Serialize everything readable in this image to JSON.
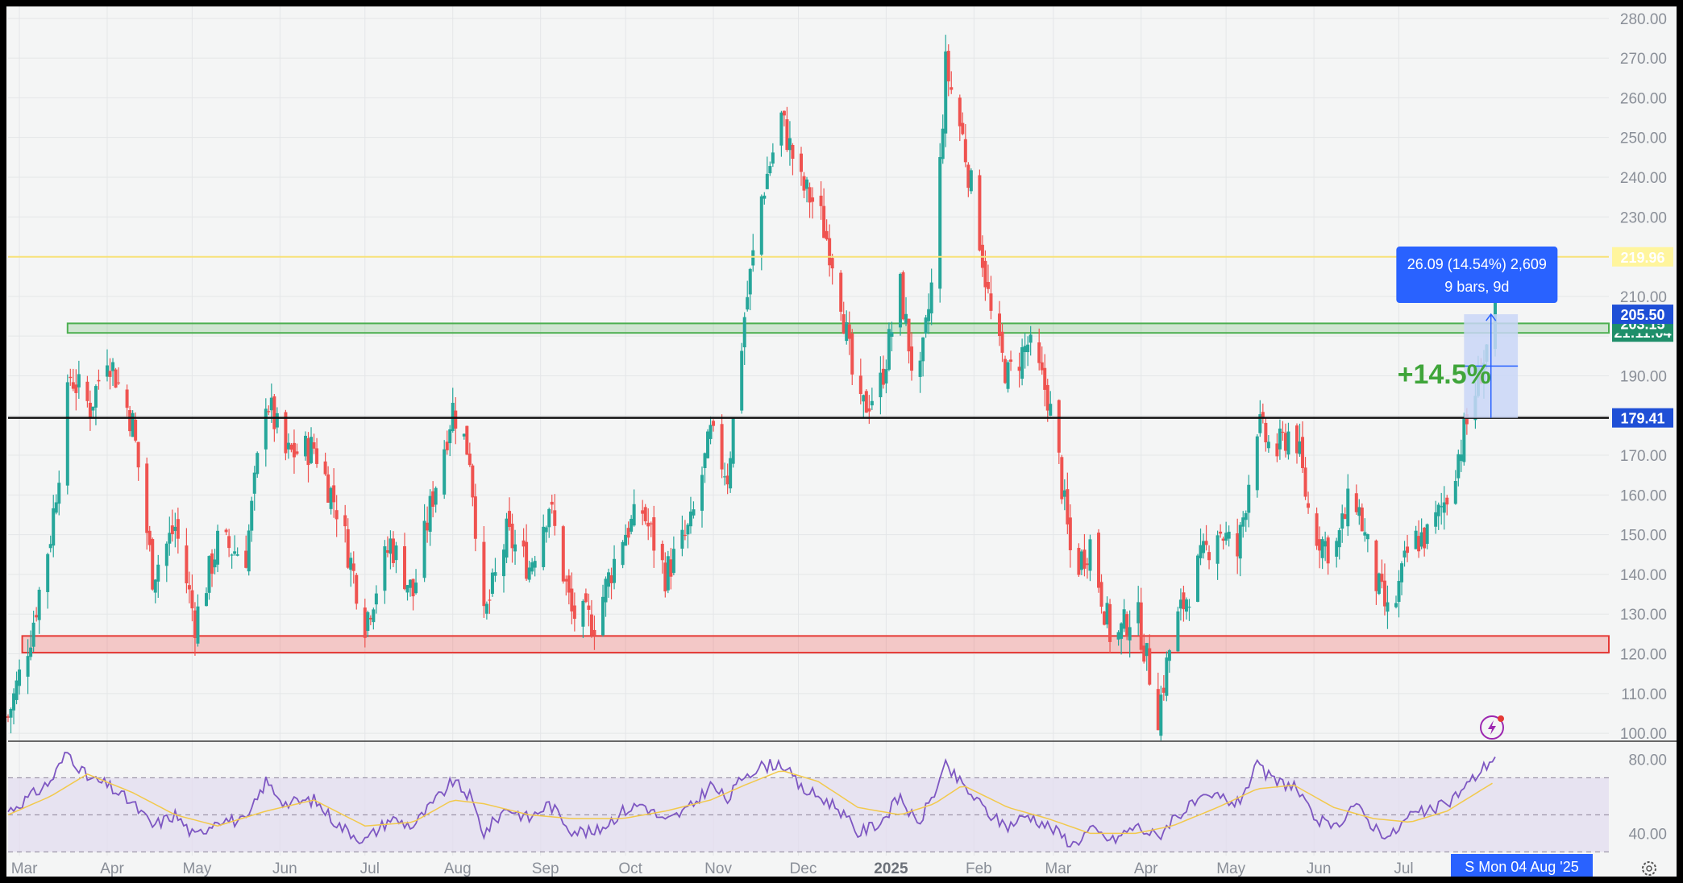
{
  "chart_data": [
    {
      "type": "candlestick",
      "title": "",
      "x_axis": {
        "type": "date",
        "range": [
          "2024-02-26",
          "2025-08-04"
        ],
        "month_labels": [
          {
            "label": "Mar",
            "date": "2024-03-01"
          },
          {
            "label": "Apr",
            "date": "2024-04-01"
          },
          {
            "label": "May",
            "date": "2024-05-01"
          },
          {
            "label": "Jun",
            "date": "2024-06-01"
          },
          {
            "label": "Jul",
            "date": "2024-07-01"
          },
          {
            "label": "Aug",
            "date": "2024-08-01"
          },
          {
            "label": "Sep",
            "date": "2024-09-01"
          },
          {
            "label": "Oct",
            "date": "2024-10-01"
          },
          {
            "label": "Nov",
            "date": "2024-11-01"
          },
          {
            "label": "Dec",
            "date": "2024-12-01"
          },
          {
            "label": "2025",
            "date": "2025-01-01",
            "bold": true
          },
          {
            "label": "Feb",
            "date": "2025-02-01"
          },
          {
            "label": "Mar",
            "date": "2025-03-01"
          },
          {
            "label": "Apr",
            "date": "2025-04-01"
          },
          {
            "label": "May",
            "date": "2025-05-01"
          },
          {
            "label": "Jun",
            "date": "2025-06-01"
          },
          {
            "label": "Jul",
            "date": "2025-07-01"
          }
        ]
      },
      "y_axis": {
        "range": [
          98,
          283
        ],
        "ticks": [
          "280.00",
          "270.00",
          "260.00",
          "250.00",
          "240.00",
          "230.00",
          "220.00",
          "210.00",
          "200.00",
          "190.00",
          "180.00",
          "170.00",
          "160.00",
          "150.00",
          "140.00",
          "130.00",
          "120.00",
          "110.00",
          "100.00"
        ]
      },
      "grid": true,
      "colors": {
        "up": "#26a69a",
        "down": "#ef5350",
        "background": "#f4f5f5",
        "grid": "#e4e6e8"
      },
      "price_path": [
        {
          "date": "2024-02-26",
          "close": 104
        },
        {
          "date": "2024-03-05",
          "close": 125
        },
        {
          "date": "2024-03-12",
          "close": 150
        },
        {
          "date": "2024-03-19",
          "close": 190
        },
        {
          "date": "2024-03-26",
          "close": 182
        },
        {
          "date": "2024-04-01",
          "close": 196
        },
        {
          "date": "2024-04-10",
          "close": 178
        },
        {
          "date": "2024-04-17",
          "close": 140
        },
        {
          "date": "2024-04-25",
          "close": 152
        },
        {
          "date": "2024-05-02",
          "close": 128
        },
        {
          "date": "2024-05-10",
          "close": 148
        },
        {
          "date": "2024-05-20",
          "close": 145
        },
        {
          "date": "2024-05-27",
          "close": 185
        },
        {
          "date": "2024-06-03",
          "close": 170
        },
        {
          "date": "2024-06-13",
          "close": 172
        },
        {
          "date": "2024-06-22",
          "close": 155
        },
        {
          "date": "2024-07-01",
          "close": 128
        },
        {
          "date": "2024-07-10",
          "close": 148
        },
        {
          "date": "2024-07-18",
          "close": 135
        },
        {
          "date": "2024-07-25",
          "close": 160
        },
        {
          "date": "2024-08-01",
          "close": 182
        },
        {
          "date": "2024-08-07",
          "close": 170
        },
        {
          "date": "2024-08-12",
          "close": 128
        },
        {
          "date": "2024-08-20",
          "close": 150
        },
        {
          "date": "2024-08-28",
          "close": 142
        },
        {
          "date": "2024-09-04",
          "close": 158
        },
        {
          "date": "2024-09-12",
          "close": 130
        },
        {
          "date": "2024-09-20",
          "close": 128
        },
        {
          "date": "2024-09-30",
          "close": 150
        },
        {
          "date": "2024-10-07",
          "close": 156
        },
        {
          "date": "2024-10-15",
          "close": 140
        },
        {
          "date": "2024-10-24",
          "close": 152
        },
        {
          "date": "2024-10-31",
          "close": 175
        },
        {
          "date": "2024-11-06",
          "close": 165
        },
        {
          "date": "2024-11-12",
          "close": 205
        },
        {
          "date": "2024-11-18",
          "close": 235
        },
        {
          "date": "2024-11-25",
          "close": 255
        },
        {
          "date": "2024-12-02",
          "close": 238
        },
        {
          "date": "2024-12-08",
          "close": 232
        },
        {
          "date": "2024-12-15",
          "close": 215
        },
        {
          "date": "2024-12-22",
          "close": 180
        },
        {
          "date": "2024-12-30",
          "close": 188
        },
        {
          "date": "2025-01-06",
          "close": 212
        },
        {
          "date": "2025-01-12",
          "close": 184
        },
        {
          "date": "2025-01-18",
          "close": 218
        },
        {
          "date": "2025-01-22",
          "close": 268
        },
        {
          "date": "2025-01-28",
          "close": 250
        },
        {
          "date": "2025-02-03",
          "close": 225
        },
        {
          "date": "2025-02-08",
          "close": 200
        },
        {
          "date": "2025-02-13",
          "close": 190
        },
        {
          "date": "2025-02-20",
          "close": 198
        },
        {
          "date": "2025-02-27",
          "close": 185
        },
        {
          "date": "2025-03-03",
          "close": 168
        },
        {
          "date": "2025-03-08",
          "close": 140
        },
        {
          "date": "2025-03-14",
          "close": 148
        },
        {
          "date": "2025-03-22",
          "close": 122
        },
        {
          "date": "2025-03-30",
          "close": 132
        },
        {
          "date": "2025-04-07",
          "close": 105
        },
        {
          "date": "2025-04-12",
          "close": 125
        },
        {
          "date": "2025-04-20",
          "close": 140
        },
        {
          "date": "2025-04-28",
          "close": 152
        },
        {
          "date": "2025-05-05",
          "close": 145
        },
        {
          "date": "2025-05-12",
          "close": 178
        },
        {
          "date": "2025-05-18",
          "close": 170
        },
        {
          "date": "2025-05-25",
          "close": 178
        },
        {
          "date": "2025-05-31",
          "close": 152
        },
        {
          "date": "2025-06-08",
          "close": 145
        },
        {
          "date": "2025-06-15",
          "close": 162
        },
        {
          "date": "2025-06-22",
          "close": 140
        },
        {
          "date": "2025-06-28",
          "close": 128
        },
        {
          "date": "2025-07-05",
          "close": 148
        },
        {
          "date": "2025-07-12",
          "close": 150
        },
        {
          "date": "2025-07-18",
          "close": 160
        },
        {
          "date": "2025-07-25",
          "close": 178
        },
        {
          "date": "2025-08-04",
          "close": 205.5
        }
      ],
      "horizontal_lines": [
        {
          "price": 219.96,
          "color": "#f7e27a",
          "label": "219.96",
          "tag_bg": "#fff59d",
          "tag_fg": "#222222"
        },
        {
          "price": 179.41,
          "color": "#111111",
          "label": "179.41",
          "tag_bg": "#1f4fd6",
          "tag_fg": "#ffffff"
        }
      ],
      "zones": [
        {
          "type": "resistance",
          "from": 200.8,
          "to": 203.2,
          "start": "2024-03-18",
          "color": "#4caf50"
        },
        {
          "type": "support",
          "from": 120.3,
          "to": 124.5,
          "start": "2024-03-02",
          "color": "#e53935"
        }
      ],
      "price_tags": [
        {
          "label": "205.50",
          "price": 205.5,
          "bg": "#1f4fd6"
        },
        {
          "label": "203.15",
          "price": 203.15,
          "bg": "#1f8f6a"
        },
        {
          "label": "21:11:04",
          "price": 201.0,
          "bg": "#1f8f6a"
        }
      ],
      "measure": {
        "start_date": "2025-07-24",
        "end_date": "2025-08-12",
        "from": 179.41,
        "to": 205.5,
        "text_line1": "26.09 (14.54%) 2,609",
        "text_line2": "9 bars, 9d",
        "fill": "#c9d6f7",
        "box_bg": "#2962ff"
      },
      "annotations": [
        {
          "text": "+14.5%",
          "date": "2025-07-17",
          "price": 190.5,
          "color": "#3fa53a"
        }
      ],
      "date_tag": {
        "text": "S   Mon 04 Aug '25",
        "bg": "#2962ff"
      }
    },
    {
      "type": "line",
      "subtype": "rsi",
      "y_axis": {
        "range": [
          28,
          88
        ],
        "ticks": [
          "80.00",
          "40.00"
        ]
      },
      "band": {
        "upper": 70,
        "middle": 50,
        "lower": 30,
        "fill": "#e3dcef"
      },
      "series": [
        {
          "color": "#7e57c2",
          "points": [
            {
              "date": "2024-02-26",
              "y": 52
            },
            {
              "date": "2024-03-05",
              "y": 60
            },
            {
              "date": "2024-03-12",
              "y": 68
            },
            {
              "date": "2024-03-18",
              "y": 84
            },
            {
              "date": "2024-03-25",
              "y": 70
            },
            {
              "date": "2024-04-01",
              "y": 66
            },
            {
              "date": "2024-04-10",
              "y": 56
            },
            {
              "date": "2024-04-17",
              "y": 44
            },
            {
              "date": "2024-04-25",
              "y": 50
            },
            {
              "date": "2024-05-02",
              "y": 38
            },
            {
              "date": "2024-05-10",
              "y": 48
            },
            {
              "date": "2024-05-20",
              "y": 46
            },
            {
              "date": "2024-05-27",
              "y": 68
            },
            {
              "date": "2024-06-03",
              "y": 56
            },
            {
              "date": "2024-06-13",
              "y": 58
            },
            {
              "date": "2024-06-22",
              "y": 44
            },
            {
              "date": "2024-07-01",
              "y": 36
            },
            {
              "date": "2024-07-10",
              "y": 48
            },
            {
              "date": "2024-07-18",
              "y": 44
            },
            {
              "date": "2024-07-25",
              "y": 56
            },
            {
              "date": "2024-08-01",
              "y": 68
            },
            {
              "date": "2024-08-07",
              "y": 60
            },
            {
              "date": "2024-08-12",
              "y": 40
            },
            {
              "date": "2024-08-20",
              "y": 54
            },
            {
              "date": "2024-08-28",
              "y": 48
            },
            {
              "date": "2024-09-04",
              "y": 56
            },
            {
              "date": "2024-09-12",
              "y": 42
            },
            {
              "date": "2024-09-20",
              "y": 40
            },
            {
              "date": "2024-09-30",
              "y": 52
            },
            {
              "date": "2024-10-07",
              "y": 56
            },
            {
              "date": "2024-10-15",
              "y": 46
            },
            {
              "date": "2024-10-24",
              "y": 54
            },
            {
              "date": "2024-10-31",
              "y": 66
            },
            {
              "date": "2024-11-06",
              "y": 58
            },
            {
              "date": "2024-11-12",
              "y": 72
            },
            {
              "date": "2024-11-18",
              "y": 76
            },
            {
              "date": "2024-11-25",
              "y": 78
            },
            {
              "date": "2024-12-02",
              "y": 64
            },
            {
              "date": "2024-12-08",
              "y": 60
            },
            {
              "date": "2024-12-15",
              "y": 54
            },
            {
              "date": "2024-12-22",
              "y": 40
            },
            {
              "date": "2024-12-30",
              "y": 46
            },
            {
              "date": "2025-01-06",
              "y": 60
            },
            {
              "date": "2025-01-12",
              "y": 44
            },
            {
              "date": "2025-01-18",
              "y": 62
            },
            {
              "date": "2025-01-22",
              "y": 76
            },
            {
              "date": "2025-01-28",
              "y": 66
            },
            {
              "date": "2025-02-03",
              "y": 56
            },
            {
              "date": "2025-02-08",
              "y": 48
            },
            {
              "date": "2025-02-13",
              "y": 44
            },
            {
              "date": "2025-02-20",
              "y": 50
            },
            {
              "date": "2025-02-27",
              "y": 44
            },
            {
              "date": "2025-03-03",
              "y": 40
            },
            {
              "date": "2025-03-08",
              "y": 34
            },
            {
              "date": "2025-03-14",
              "y": 42
            },
            {
              "date": "2025-03-22",
              "y": 36
            },
            {
              "date": "2025-03-30",
              "y": 44
            },
            {
              "date": "2025-04-07",
              "y": 38
            },
            {
              "date": "2025-04-12",
              "y": 48
            },
            {
              "date": "2025-04-20",
              "y": 56
            },
            {
              "date": "2025-04-28",
              "y": 60
            },
            {
              "date": "2025-05-05",
              "y": 56
            },
            {
              "date": "2025-05-12",
              "y": 76
            },
            {
              "date": "2025-05-18",
              "y": 68
            },
            {
              "date": "2025-05-25",
              "y": 66
            },
            {
              "date": "2025-05-31",
              "y": 50
            },
            {
              "date": "2025-06-08",
              "y": 42
            },
            {
              "date": "2025-06-15",
              "y": 56
            },
            {
              "date": "2025-06-22",
              "y": 44
            },
            {
              "date": "2025-06-28",
              "y": 38
            },
            {
              "date": "2025-07-05",
              "y": 50
            },
            {
              "date": "2025-07-12",
              "y": 52
            },
            {
              "date": "2025-07-18",
              "y": 56
            },
            {
              "date": "2025-07-25",
              "y": 66
            },
            {
              "date": "2025-08-04",
              "y": 82
            }
          ]
        },
        {
          "color": "#f2c94c",
          "points": [
            {
              "date": "2024-02-26",
              "y": 50
            },
            {
              "date": "2024-03-12",
              "y": 60
            },
            {
              "date": "2024-03-25",
              "y": 72
            },
            {
              "date": "2024-04-10",
              "y": 62
            },
            {
              "date": "2024-04-25",
              "y": 50
            },
            {
              "date": "2024-05-10",
              "y": 44
            },
            {
              "date": "2024-05-27",
              "y": 52
            },
            {
              "date": "2024-06-13",
              "y": 58
            },
            {
              "date": "2024-07-01",
              "y": 44
            },
            {
              "date": "2024-07-18",
              "y": 46
            },
            {
              "date": "2024-08-01",
              "y": 58
            },
            {
              "date": "2024-08-12",
              "y": 56
            },
            {
              "date": "2024-08-28",
              "y": 50
            },
            {
              "date": "2024-09-12",
              "y": 48
            },
            {
              "date": "2024-09-30",
              "y": 48
            },
            {
              "date": "2024-10-15",
              "y": 52
            },
            {
              "date": "2024-10-31",
              "y": 58
            },
            {
              "date": "2024-11-12",
              "y": 66
            },
            {
              "date": "2024-11-25",
              "y": 74
            },
            {
              "date": "2024-12-08",
              "y": 68
            },
            {
              "date": "2024-12-22",
              "y": 54
            },
            {
              "date": "2025-01-06",
              "y": 50
            },
            {
              "date": "2025-01-18",
              "y": 56
            },
            {
              "date": "2025-01-28",
              "y": 66
            },
            {
              "date": "2025-02-13",
              "y": 54
            },
            {
              "date": "2025-02-27",
              "y": 48
            },
            {
              "date": "2025-03-14",
              "y": 40
            },
            {
              "date": "2025-03-30",
              "y": 40
            },
            {
              "date": "2025-04-12",
              "y": 44
            },
            {
              "date": "2025-04-28",
              "y": 54
            },
            {
              "date": "2025-05-12",
              "y": 64
            },
            {
              "date": "2025-05-25",
              "y": 66
            },
            {
              "date": "2025-06-08",
              "y": 54
            },
            {
              "date": "2025-06-22",
              "y": 48
            },
            {
              "date": "2025-07-05",
              "y": 46
            },
            {
              "date": "2025-07-18",
              "y": 52
            },
            {
              "date": "2025-08-04",
              "y": 68
            }
          ]
        }
      ]
    }
  ]
}
